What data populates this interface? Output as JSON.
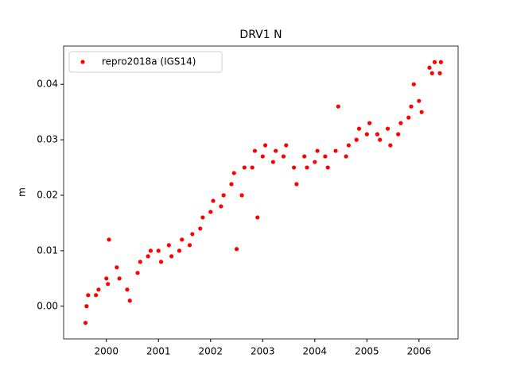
{
  "chart_data": {
    "type": "scatter",
    "title": "DRV1 N",
    "y_label": "m",
    "xlim": [
      1999.18,
      2006.75
    ],
    "ylim": [
      -0.0059,
      0.0469
    ],
    "xticks": [
      2000,
      2001,
      2002,
      2003,
      2004,
      2005,
      2006
    ],
    "yticks": [
      {
        "value": 0,
        "label": "0.00"
      },
      0.01,
      0.02,
      0.03,
      0.04
    ],
    "legend": "upper left",
    "series": [
      {
        "name": "repro2018a (IGS14)",
        "color": "#ff0000",
        "x": [
          1999.6,
          1999.62,
          1999.65,
          1999.8,
          1999.85,
          2000.0,
          2000.03,
          2000.05,
          2000.2,
          2000.25,
          2000.4,
          2000.45,
          2000.6,
          2000.65,
          2000.8,
          2000.85,
          2001.0,
          2001.05,
          2001.2,
          2001.25,
          2001.4,
          2001.45,
          2001.6,
          2001.65,
          2001.8,
          2001.85,
          2002.0,
          2002.05,
          2002.2,
          2002.25,
          2002.4,
          2002.45,
          2002.5,
          2002.6,
          2002.65,
          2002.8,
          2002.85,
          2002.9,
          2003.0,
          2003.05,
          2003.2,
          2003.25,
          2003.4,
          2003.45,
          2003.6,
          2003.65,
          2003.8,
          2003.85,
          2004.0,
          2004.05,
          2004.2,
          2004.25,
          2004.4,
          2004.45,
          2004.6,
          2004.65,
          2004.8,
          2004.85,
          2005.0,
          2005.05,
          2005.2,
          2005.25,
          2005.4,
          2005.45,
          2005.6,
          2005.65,
          2005.8,
          2005.85,
          2005.9,
          2006.0,
          2006.05,
          2006.2,
          2006.25,
          2006.3,
          2006.4,
          2006.42
        ],
        "values": [
          -0.003,
          0.0,
          0.002,
          0.002,
          0.003,
          0.005,
          0.004,
          0.012,
          0.007,
          0.005,
          0.003,
          0.001,
          0.006,
          0.008,
          0.009,
          0.01,
          0.01,
          0.008,
          0.011,
          0.009,
          0.01,
          0.012,
          0.011,
          0.013,
          0.014,
          0.016,
          0.017,
          0.019,
          0.018,
          0.02,
          0.022,
          0.024,
          0.0103,
          0.02,
          0.025,
          0.025,
          0.028,
          0.016,
          0.027,
          0.029,
          0.026,
          0.028,
          0.027,
          0.029,
          0.025,
          0.022,
          0.027,
          0.025,
          0.026,
          0.028,
          0.027,
          0.025,
          0.028,
          0.036,
          0.027,
          0.029,
          0.03,
          0.032,
          0.031,
          0.033,
          0.031,
          0.03,
          0.032,
          0.029,
          0.031,
          0.033,
          0.034,
          0.036,
          0.04,
          0.037,
          0.035,
          0.043,
          0.042,
          0.044,
          0.042,
          0.044
        ]
      }
    ]
  }
}
